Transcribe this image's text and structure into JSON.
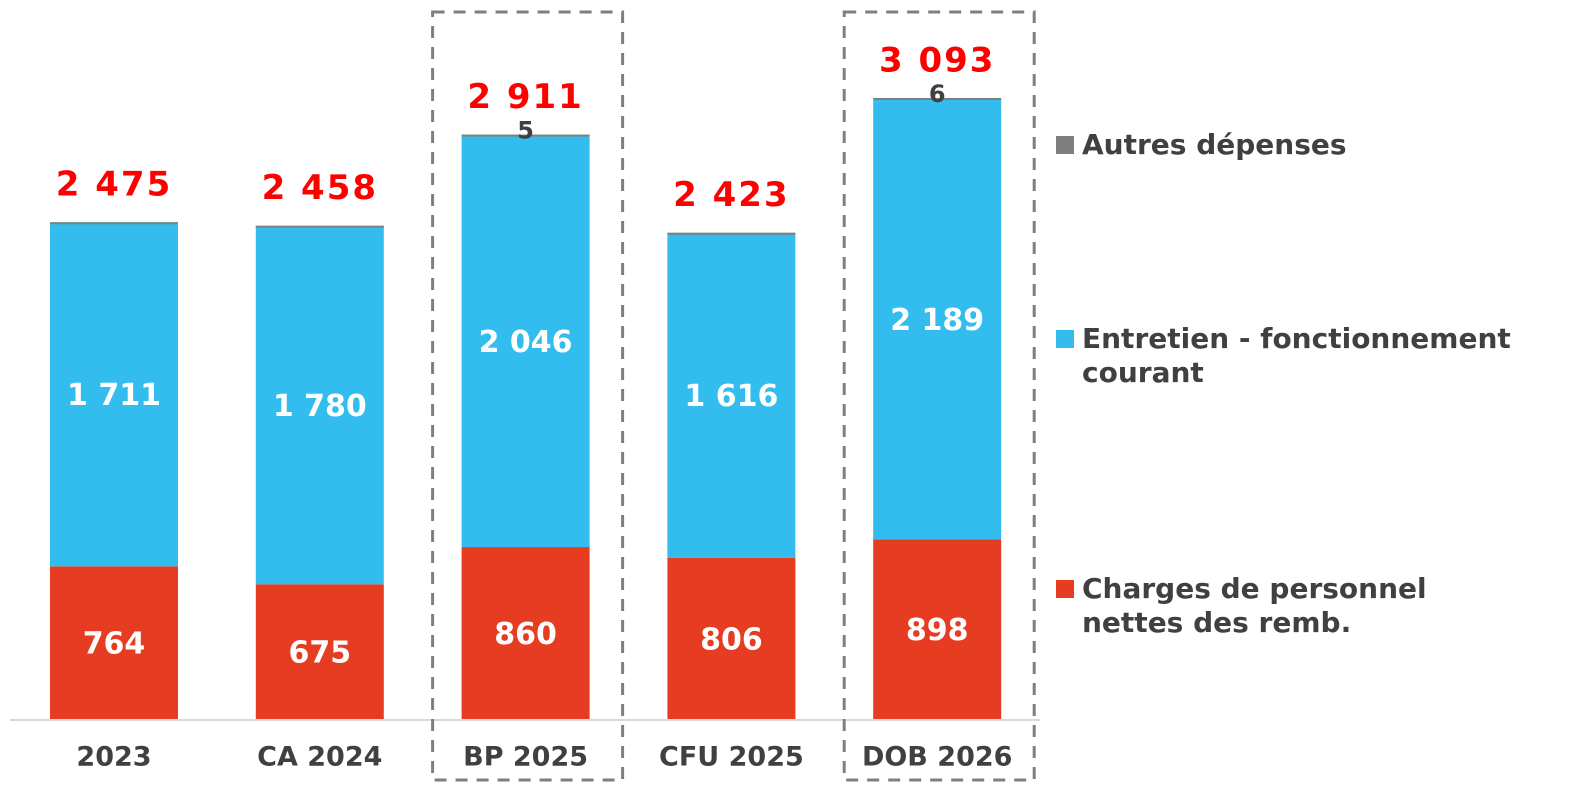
{
  "chart_data": {
    "type": "stacked_bar",
    "categories": [
      "2023",
      "CA 2024",
      "BP 2025",
      "CFU 2025",
      "DOB 2026"
    ],
    "series": [
      {
        "name": "Charges de personnel nettes des remb.",
        "color": "#e63c22",
        "values": [
          764,
          675,
          860,
          806,
          898
        ]
      },
      {
        "name": "Entretien - fonctionnement courant",
        "color": "#33bdef",
        "values": [
          1711,
          1780,
          2046,
          1616,
          2189
        ],
        "value_labels": [
          "1 711",
          "1 780",
          "2 046",
          "1 616",
          "2 189"
        ]
      },
      {
        "name": "Autres dépenses",
        "color": "#7f7f7f",
        "values": [
          0,
          3,
          5,
          1,
          6
        ],
        "value_labels": [
          null,
          null,
          "5",
          null,
          "6"
        ]
      }
    ],
    "totals": [
      2475,
      2458,
      2911,
      2423,
      3093
    ],
    "total_labels": [
      "2 475",
      "2 458",
      "2 911",
      "2 423",
      "3 093"
    ],
    "highlight_indices": [
      2,
      4
    ],
    "ylim": [
      0,
      3580
    ]
  }
}
